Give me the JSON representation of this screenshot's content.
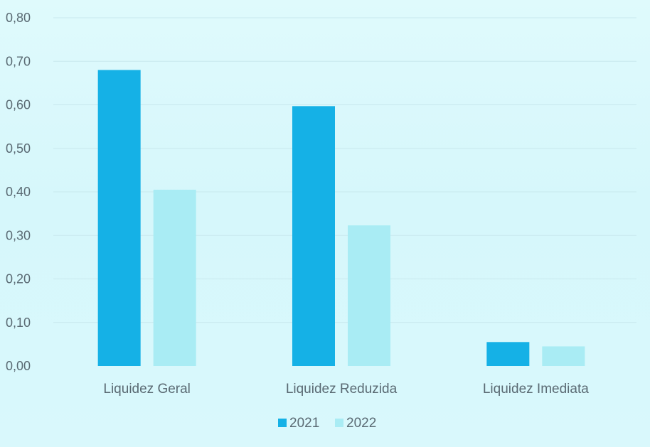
{
  "chart_data": {
    "type": "bar",
    "title": "",
    "xlabel": "",
    "ylabel": "",
    "categories": [
      "Liquidez Geral",
      "Liquidez Reduzida",
      "Liquidez Imediata"
    ],
    "series": [
      {
        "name": "2021",
        "values": [
          0.68,
          0.597,
          0.055
        ],
        "color": "#15b1e6"
      },
      {
        "name": "2022",
        "values": [
          0.405,
          0.323,
          0.045
        ],
        "color": "#a9ecf4"
      }
    ],
    "ylim": [
      0,
      0.8
    ],
    "yticks": [
      "0,00",
      "0,10",
      "0,20",
      "0,30",
      "0,40",
      "0,50",
      "0,60",
      "0,70",
      "0,80"
    ],
    "grid": true,
    "legend_position": "bottom"
  }
}
